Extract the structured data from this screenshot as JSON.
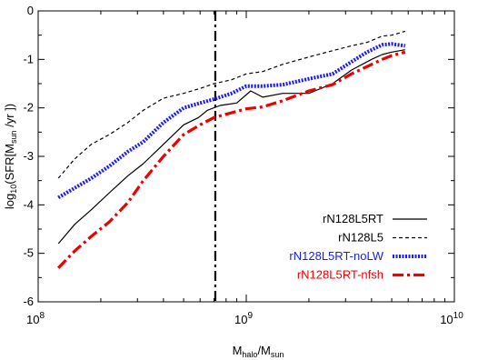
{
  "chart_data": {
    "type": "line",
    "title": "",
    "xlabel": {
      "main": "M",
      "sub1": "halo",
      "mid": "/M",
      "sub2": "sun"
    },
    "ylabel": {
      "pre": "log",
      "sub": "10",
      "post": "(SFR[M",
      "sub2": "sun",
      "end": " /yr ])"
    },
    "xscale": "log",
    "xlim": [
      100000000.0,
      10000000000.0
    ],
    "ylim": [
      -6,
      0
    ],
    "x_ticks": [
      {
        "base": "10",
        "exp": "8",
        "value": 100000000.0
      },
      {
        "base": "10",
        "exp": "9",
        "value": 1000000000.0
      },
      {
        "base": "10",
        "exp": "10",
        "value": 10000000000.0
      }
    ],
    "y_ticks": [
      {
        "label": "0",
        "value": 0
      },
      {
        "label": "-1",
        "value": -1
      },
      {
        "label": "-2",
        "value": -2
      },
      {
        "label": "-3",
        "value": -3
      },
      {
        "label": "-4",
        "value": -4
      },
      {
        "label": "-5",
        "value": -5
      },
      {
        "label": "-6",
        "value": -6
      }
    ],
    "vline": {
      "x": 710000000.0,
      "style": "dash-dot"
    },
    "legend_position": "bottom-right",
    "series": [
      {
        "name": "rN128L5RT",
        "color": "#000000",
        "style": "solid",
        "x": [
          125000000.0,
          150000000.0,
          180000000.0,
          220000000.0,
          270000000.0,
          320000000.0,
          400000000.0,
          500000000.0,
          590000000.0,
          650000000.0,
          750000000.0,
          900000000.0,
          1050000000.0,
          1200000000.0,
          1500000000.0,
          2000000000.0,
          2600000000.0,
          3200000000.0,
          4000000000.0,
          4500000000.0,
          5000000000.0,
          5800000000.0
        ],
        "y": [
          -4.8,
          -4.4,
          -4.1,
          -3.75,
          -3.4,
          -3.15,
          -2.75,
          -2.35,
          -2.2,
          -2.05,
          -1.95,
          -1.9,
          -1.65,
          -1.78,
          -1.7,
          -1.7,
          -1.5,
          -1.22,
          -1.0,
          -0.9,
          -0.85,
          -0.8
        ]
      },
      {
        "name": "rN128L5",
        "color": "#000000",
        "style": "dashed",
        "x": [
          125000000.0,
          150000000.0,
          180000000.0,
          220000000.0,
          270000000.0,
          320000000.0,
          400000000.0,
          500000000.0,
          600000000.0,
          700000000.0,
          850000000.0,
          1000000000.0,
          1200000000.0,
          1500000000.0,
          2000000000.0,
          2600000000.0,
          3200000000.0,
          3800000000.0,
          4500000000.0,
          5000000000.0,
          5800000000.0
        ],
        "y": [
          -3.45,
          -3.05,
          -2.75,
          -2.55,
          -2.3,
          -2.05,
          -1.8,
          -1.7,
          -1.6,
          -1.5,
          -1.42,
          -1.3,
          -1.25,
          -1.1,
          -0.95,
          -0.82,
          -0.72,
          -0.65,
          -0.52,
          -0.5,
          -0.42
        ]
      },
      {
        "name": "rN128L5RT-noLW",
        "color": "#1a1aff",
        "style": "dotted-thick",
        "x": [
          125000000.0,
          150000000.0,
          180000000.0,
          220000000.0,
          270000000.0,
          320000000.0,
          400000000.0,
          500000000.0,
          600000000.0,
          700000000.0,
          850000000.0,
          1000000000.0,
          1200000000.0,
          1500000000.0,
          2000000000.0,
          2600000000.0,
          3200000000.0,
          3800000000.0,
          4500000000.0,
          5000000000.0,
          5800000000.0
        ],
        "y": [
          -3.85,
          -3.65,
          -3.45,
          -3.2,
          -2.9,
          -2.7,
          -2.3,
          -2.0,
          -1.9,
          -1.82,
          -1.7,
          -1.55,
          -1.55,
          -1.52,
          -1.4,
          -1.3,
          -1.05,
          -0.85,
          -0.7,
          -0.68,
          -0.72
        ]
      },
      {
        "name": "rN128L5RT-nfsh",
        "color": "#ee0000",
        "style": "dash-dot-thick",
        "x": [
          125000000.0,
          150000000.0,
          180000000.0,
          220000000.0,
          270000000.0,
          320000000.0,
          400000000.0,
          500000000.0,
          600000000.0,
          700000000.0,
          850000000.0,
          1000000000.0,
          1200000000.0,
          1500000000.0,
          2000000000.0,
          2600000000.0,
          3200000000.0,
          3800000000.0,
          4500000000.0,
          5000000000.0,
          5800000000.0
        ],
        "y": [
          -5.3,
          -4.95,
          -4.65,
          -4.35,
          -3.95,
          -3.5,
          -3.0,
          -2.55,
          -2.35,
          -2.2,
          -2.1,
          -2.02,
          -1.98,
          -1.85,
          -1.65,
          -1.52,
          -1.3,
          -1.15,
          -1.0,
          -0.92,
          -0.85
        ]
      }
    ]
  }
}
